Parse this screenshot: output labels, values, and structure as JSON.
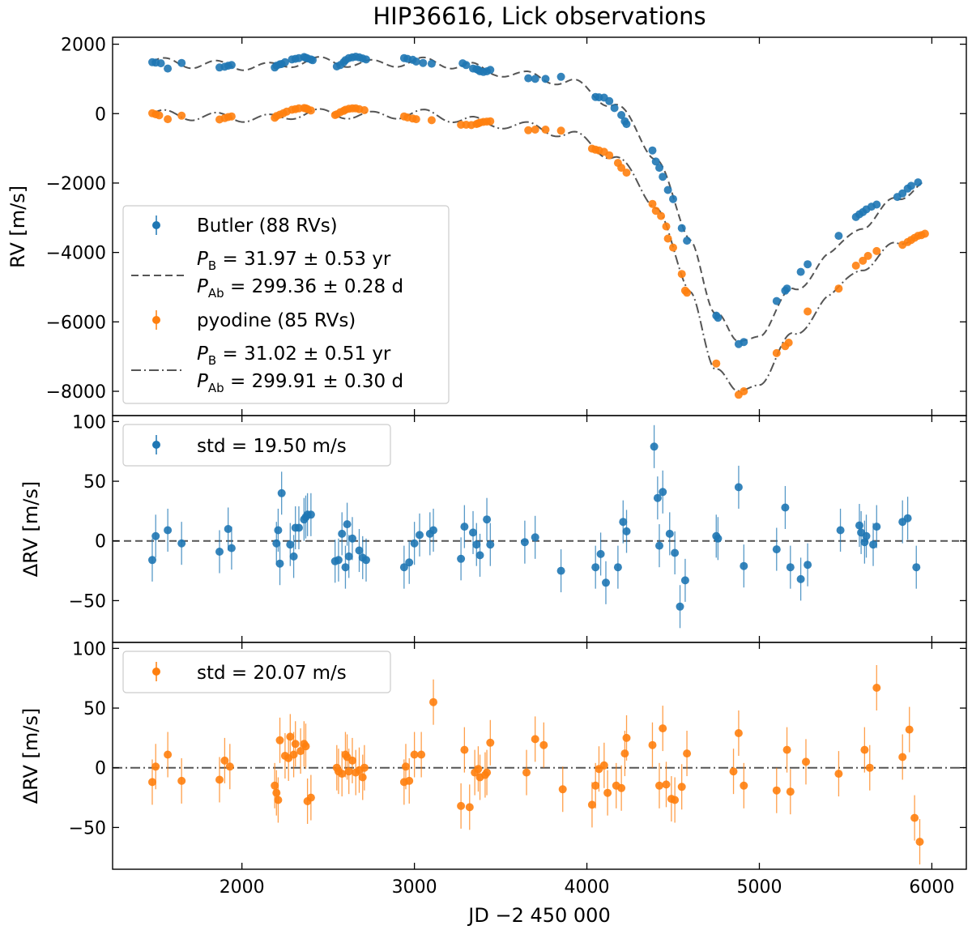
{
  "chart_data": [
    {
      "type": "line",
      "panel": "top",
      "title": "HIP36616, Lick observations",
      "xlabel": "",
      "ylabel": "RV [m/s]",
      "xlim": [
        1250,
        6200
      ],
      "ylim": [
        -8700,
        2200
      ],
      "yticks": [
        2000,
        0,
        -2000,
        -4000,
        -6000,
        -8000
      ],
      "ytick_labels": [
        "2000",
        "0",
        "−2000",
        "−4000",
        "−6000",
        "−8000"
      ],
      "legend_position": "lower-left",
      "legend": {
        "butler_points": "Butler (88 RVs)",
        "butler_fit_line1_P": "P",
        "butler_fit_line1_sub": "B",
        "butler_fit_line1_rest": " = 31.97 ± 0.53 yr",
        "butler_fit_line2_P": "P",
        "butler_fit_line2_sub": "Ab",
        "butler_fit_line2_rest": " = 299.36 ± 0.28 d",
        "pyodine_points": "pyodine (85 RVs)",
        "pyodine_fit_line1_P": "P",
        "pyodine_fit_line1_sub": "B",
        "pyodine_fit_line1_rest": " = 31.02 ± 0.51 yr",
        "pyodine_fit_line2_P": "P",
        "pyodine_fit_line2_sub": "Ab",
        "pyodine_fit_line2_rest": " = 299.91 ± 0.30 d"
      },
      "series": [
        {
          "name": "Butler (88 RVs)",
          "color": "#1f77b4",
          "style": "markers",
          "x": [
            1480,
            1500,
            1530,
            1570,
            1650,
            1870,
            1900,
            1920,
            1940,
            2190,
            2200,
            2220,
            2230,
            2250,
            2290,
            2310,
            2330,
            2360,
            2370,
            2380,
            2400,
            2410,
            2550,
            2570,
            2590,
            2600,
            2620,
            2640,
            2660,
            2680,
            2700,
            2720,
            2940,
            2960,
            2990,
            3010,
            3050,
            3100,
            3280,
            3300,
            3340,
            3360,
            3370,
            3380,
            3400,
            3420,
            3440,
            3660,
            3700,
            3760,
            3850,
            4050,
            4070,
            4100,
            4130,
            4160,
            4200,
            4220,
            4230,
            4380,
            4400,
            4420,
            4440,
            4470,
            4500,
            4550,
            4580,
            4750,
            4760,
            4880,
            4910,
            5100,
            5150,
            5160,
            5240,
            5280,
            5460,
            5560,
            5580,
            5600,
            5620,
            5650,
            5680,
            5800,
            5830,
            5860,
            5880,
            5920
          ],
          "y": [
            1480,
            1470,
            1450,
            1300,
            1460,
            1330,
            1350,
            1380,
            1400,
            1330,
            1380,
            1420,
            1430,
            1480,
            1560,
            1580,
            1600,
            1630,
            1610,
            1590,
            1560,
            1540,
            1360,
            1400,
            1480,
            1540,
            1600,
            1620,
            1640,
            1620,
            1590,
            1560,
            1600,
            1580,
            1550,
            1500,
            1460,
            1440,
            1450,
            1400,
            1300,
            1280,
            1260,
            1220,
            1200,
            1220,
            1260,
            1020,
            1000,
            1000,
            1060,
            480,
            470,
            460,
            360,
            160,
            -40,
            -220,
            -300,
            -1060,
            -1380,
            -1560,
            -1820,
            -2200,
            -2460,
            -3300,
            -3660,
            -5820,
            -5880,
            -6640,
            -6580,
            -5400,
            -5100,
            -5040,
            -4560,
            -4340,
            -3520,
            -2980,
            -2900,
            -2840,
            -2760,
            -2680,
            -2620,
            -2400,
            -2300,
            -2160,
            -2080,
            -1980
          ]
        },
        {
          "name": "Butler fit",
          "color": "#555555",
          "style": "dashed",
          "knots_x": [
            1480,
            1750,
            2150,
            2400,
            2750,
            3050,
            3300,
            3450,
            3650,
            3900,
            4150,
            4400,
            4600,
            4750,
            4870,
            5000,
            5200,
            5400,
            5600,
            5800,
            5950
          ],
          "knots_y": [
            1500,
            1420,
            1350,
            1520,
            1430,
            1500,
            1380,
            1200,
            1100,
            900,
            300,
            -1200,
            -3700,
            -5700,
            -6650,
            -6300,
            -5100,
            -4100,
            -3200,
            -2500,
            -1920
          ],
          "wiggle_amplitude": 120,
          "wiggle_period_days": 299.36
        },
        {
          "name": "pyodine (85 RVs)",
          "color": "#ff7f0e",
          "style": "markers",
          "x": [
            1480,
            1500,
            1520,
            1570,
            1650,
            1870,
            1900,
            1920,
            1940,
            2190,
            2200,
            2220,
            2240,
            2260,
            2290,
            2310,
            2330,
            2360,
            2370,
            2380,
            2400,
            2540,
            2550,
            2570,
            2590,
            2600,
            2620,
            2640,
            2660,
            2680,
            2710,
            2940,
            2960,
            2990,
            3010,
            3100,
            3270,
            3300,
            3330,
            3360,
            3370,
            3380,
            3400,
            3420,
            3440,
            3660,
            3700,
            3760,
            3850,
            4030,
            4050,
            4070,
            4100,
            4130,
            4180,
            4200,
            4230,
            4380,
            4400,
            4430,
            4460,
            4470,
            4500,
            4550,
            4570,
            4580,
            4750,
            4880,
            4910,
            5100,
            5150,
            5170,
            5280,
            5460,
            5560,
            5600,
            5630,
            5680,
            5830,
            5860,
            5880,
            5900,
            5920,
            5940,
            5960
          ],
          "y": [
            10,
            -20,
            -50,
            -160,
            -60,
            -170,
            -130,
            -100,
            -80,
            -120,
            -70,
            -30,
            10,
            60,
            110,
            130,
            150,
            160,
            150,
            130,
            90,
            -40,
            -20,
            40,
            80,
            110,
            140,
            150,
            150,
            130,
            100,
            -80,
            -110,
            -140,
            -160,
            -190,
            -320,
            -320,
            -330,
            -300,
            -280,
            -260,
            -240,
            -230,
            -220,
            -480,
            -460,
            -460,
            -490,
            -1010,
            -1040,
            -1060,
            -1100,
            -1200,
            -1420,
            -1560,
            -1700,
            -2600,
            -2800,
            -2950,
            -3250,
            -3600,
            -3860,
            -4620,
            -5100,
            -5160,
            -7200,
            -8100,
            -8000,
            -6900,
            -6700,
            -6600,
            -5700,
            -5040,
            -4380,
            -4240,
            -4100,
            -3960,
            -3780,
            -3700,
            -3640,
            -3580,
            -3520,
            -3500,
            -3460
          ],
          "y_note": "markers rendered at these values"
        },
        {
          "name": "pyodine fit",
          "color": "#555555",
          "style": "dashdot",
          "knots_x": [
            1480,
            1750,
            2150,
            2400,
            2750,
            3050,
            3300,
            3450,
            3650,
            3900,
            4150,
            4400,
            4600,
            4750,
            4870,
            5000,
            5200,
            5400,
            5600,
            5800,
            5950
          ],
          "knots_y": [
            0,
            -80,
            -140,
            20,
            -60,
            0,
            -180,
            -300,
            -360,
            -600,
            -1200,
            -2600,
            -5200,
            -7300,
            -8100,
            -7700,
            -6400,
            -5300,
            -4400,
            -3800,
            -3350
          ],
          "wiggle_amplitude": 120,
          "wiggle_period_days": 299.91
        }
      ]
    },
    {
      "type": "scatter",
      "panel": "middle",
      "xlabel": "",
      "ylabel": "ΔRV [m/s]",
      "xlim": [
        1250,
        6200
      ],
      "ylim": [
        -85,
        105
      ],
      "yticks": [
        100,
        50,
        0,
        -50
      ],
      "ytick_labels": [
        "100",
        "50",
        "0",
        "−50"
      ],
      "reference_line": {
        "y": 0,
        "style": "dashed",
        "color": "#555555"
      },
      "legend_position": "top-left",
      "legend_label": "std = 19.50 m/s",
      "series": [
        {
          "name": "Butler residuals",
          "color": "#1f77b4",
          "x": [
            1480,
            1500,
            1570,
            1650,
            1870,
            1920,
            1940,
            2200,
            2210,
            2220,
            2230,
            2280,
            2300,
            2310,
            2330,
            2360,
            2370,
            2380,
            2400,
            2540,
            2560,
            2580,
            2600,
            2610,
            2620,
            2640,
            2680,
            2700,
            2720,
            2940,
            2970,
            3000,
            3030,
            3090,
            3110,
            3270,
            3290,
            3340,
            3360,
            3380,
            3420,
            3440,
            3640,
            3700,
            3850,
            4050,
            4080,
            4110,
            4180,
            4210,
            4230,
            4390,
            4410,
            4420,
            4440,
            4480,
            4510,
            4540,
            4570,
            4750,
            4760,
            4880,
            4910,
            5100,
            5150,
            5180,
            5240,
            5280,
            5470,
            5580,
            5590,
            5610,
            5620,
            5660,
            5680,
            5830,
            5860,
            5910
          ],
          "y": [
            -16,
            4,
            9,
            -2,
            -9,
            10,
            -6,
            -2,
            9,
            -19,
            40,
            -3,
            -13,
            11,
            11,
            18,
            20,
            22,
            22,
            -17,
            -16,
            6,
            -22,
            14,
            -13,
            2,
            -8,
            -14,
            -16,
            -22,
            -18,
            -2,
            5,
            6,
            9,
            -15,
            12,
            7,
            -3,
            -12,
            18,
            -3,
            -1,
            3,
            -25,
            -22,
            -11,
            -35,
            -22,
            16,
            8,
            79,
            36,
            -4,
            41,
            6,
            -10,
            -55,
            -33,
            4,
            2,
            45,
            -21,
            -7,
            28,
            -22,
            -32,
            -20,
            9,
            13,
            7,
            -1,
            4,
            -3,
            12,
            16,
            19,
            -22
          ],
          "yerr": 18
        }
      ]
    },
    {
      "type": "scatter",
      "panel": "bottom",
      "xlabel": "JD −2 450 000",
      "ylabel": "ΔRV [m/s]",
      "xlim": [
        1250,
        6200
      ],
      "ylim": [
        -85,
        105
      ],
      "xticks": [
        2000,
        3000,
        4000,
        5000,
        6000
      ],
      "xtick_labels": [
        "2000",
        "3000",
        "4000",
        "5000",
        "6000"
      ],
      "yticks": [
        100,
        50,
        0,
        -50
      ],
      "ytick_labels": [
        "100",
        "50",
        "0",
        "−50"
      ],
      "reference_line": {
        "y": 0,
        "style": "dashdot",
        "color": "#555555"
      },
      "legend_position": "top-left",
      "legend_label": "std = 20.07 m/s",
      "series": [
        {
          "name": "pyodine residuals",
          "color": "#ff7f0e",
          "x": [
            1480,
            1500,
            1570,
            1650,
            1870,
            1900,
            1930,
            2190,
            2200,
            2210,
            2220,
            2250,
            2270,
            2280,
            2300,
            2310,
            2340,
            2360,
            2370,
            2380,
            2400,
            2550,
            2560,
            2580,
            2600,
            2610,
            2620,
            2640,
            2660,
            2680,
            2700,
            2710,
            2940,
            2950,
            2970,
            3000,
            3040,
            3110,
            3270,
            3290,
            3320,
            3350,
            3370,
            3380,
            3410,
            3420,
            3440,
            3650,
            3700,
            3750,
            3860,
            4030,
            4050,
            4070,
            4100,
            4120,
            4170,
            4200,
            4220,
            4230,
            4380,
            4420,
            4440,
            4460,
            4490,
            4510,
            4550,
            4580,
            4850,
            4880,
            4910,
            5100,
            5160,
            5180,
            5270,
            5460,
            5610,
            5640,
            5680,
            5830,
            5870,
            5900,
            5930
          ],
          "y": [
            -12,
            1,
            11,
            -11,
            -10,
            6,
            1,
            -15,
            -21,
            -27,
            23,
            10,
            8,
            26,
            11,
            20,
            14,
            20,
            18,
            -28,
            -25,
            0,
            -3,
            -5,
            11,
            9,
            -3,
            6,
            -4,
            -2,
            -8,
            0,
            -12,
            1,
            -11,
            11,
            11,
            55,
            -32,
            15,
            -33,
            -4,
            -1,
            -8,
            -6,
            -4,
            21,
            -4,
            24,
            19,
            -18,
            -31,
            -15,
            -1,
            2,
            -21,
            -15,
            -17,
            12,
            25,
            19,
            -15,
            33,
            -14,
            -26,
            -27,
            -16,
            12,
            -3,
            29,
            -15,
            -19,
            15,
            -20,
            5,
            -5,
            15,
            0,
            67,
            9,
            32,
            -42,
            -62
          ],
          "yerr": 19
        }
      ]
    }
  ],
  "colors": {
    "butler": "#1f77b4",
    "pyodine": "#ff7f0e",
    "fit": "#555555",
    "frame": "#000000",
    "legend_border": "#cccccc"
  }
}
